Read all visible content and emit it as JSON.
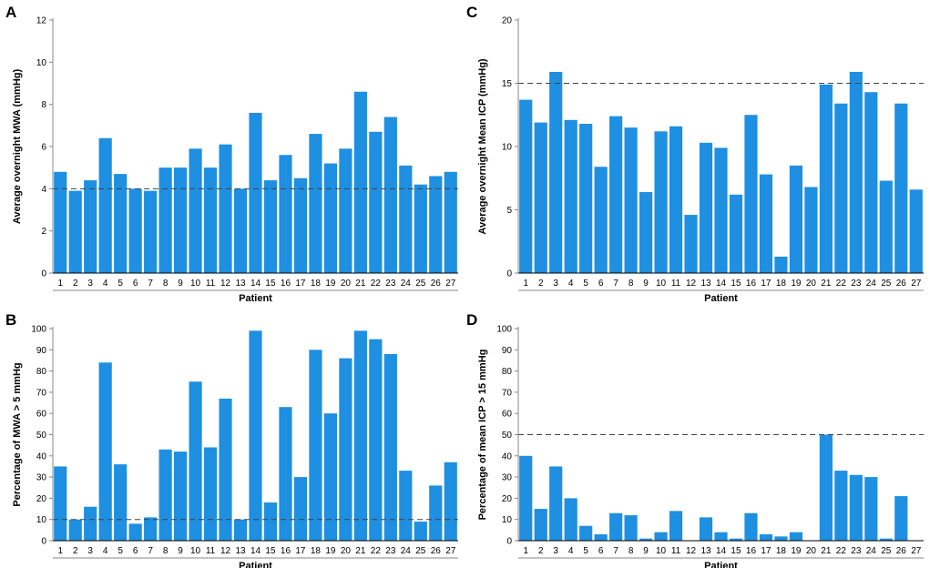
{
  "colors": {
    "bar": "#1E8FE1",
    "axis": "#888888",
    "baseline": "#000000",
    "reference_line": "#444444"
  },
  "chart_data": [
    {
      "panel": "A",
      "type": "bar",
      "title": "",
      "xlabel": "Patient",
      "ylabel": "Average overnight MWA (mmHg)",
      "categories": [
        "1",
        "2",
        "3",
        "4",
        "5",
        "6",
        "7",
        "8",
        "9",
        "10",
        "11",
        "12",
        "13",
        "14",
        "15",
        "16",
        "17",
        "18",
        "19",
        "20",
        "21",
        "22",
        "23",
        "24",
        "25",
        "26",
        "27"
      ],
      "values": [
        4.8,
        3.9,
        4.4,
        6.4,
        4.7,
        4.0,
        3.9,
        5.0,
        5.0,
        5.9,
        5.0,
        6.1,
        4.0,
        7.6,
        4.4,
        5.6,
        4.5,
        6.6,
        5.2,
        5.9,
        8.6,
        6.7,
        7.4,
        5.1,
        4.2,
        4.6,
        4.8
      ],
      "ylim": [
        0,
        12
      ],
      "yticks": [
        0,
        2,
        4,
        6,
        8,
        10,
        12
      ],
      "reference_line": 4,
      "grid": false
    },
    {
      "panel": "B",
      "type": "bar",
      "title": "",
      "xlabel": "Patient",
      "ylabel": "Percentage of MWA > 5 mmHg",
      "categories": [
        "1",
        "2",
        "3",
        "4",
        "5",
        "6",
        "7",
        "8",
        "9",
        "10",
        "11",
        "12",
        "13",
        "14",
        "15",
        "16",
        "17",
        "18",
        "19",
        "20",
        "21",
        "22",
        "23",
        "24",
        "25",
        "26",
        "27"
      ],
      "values": [
        35,
        10,
        16,
        84,
        36,
        8,
        11,
        43,
        42,
        75,
        44,
        67,
        10,
        99,
        18,
        63,
        30,
        90,
        60,
        86,
        99,
        95,
        88,
        33,
        9,
        26,
        37
      ],
      "ylim": [
        0,
        100
      ],
      "yticks": [
        0,
        10,
        20,
        30,
        40,
        50,
        60,
        70,
        80,
        90,
        100
      ],
      "reference_line": 10,
      "grid": false
    },
    {
      "panel": "C",
      "type": "bar",
      "title": "",
      "xlabel": "Patient",
      "ylabel": "Average overnight Mean ICP (mmHg)",
      "categories": [
        "1",
        "2",
        "3",
        "4",
        "5",
        "6",
        "7",
        "8",
        "9",
        "10",
        "11",
        "12",
        "13",
        "14",
        "15",
        "16",
        "17",
        "18",
        "19",
        "20",
        "21",
        "22",
        "23",
        "24",
        "25",
        "26",
        "27"
      ],
      "values": [
        13.7,
        11.9,
        15.9,
        12.1,
        11.8,
        8.4,
        12.4,
        11.5,
        6.4,
        11.2,
        11.6,
        4.6,
        10.3,
        9.9,
        6.2,
        12.5,
        7.8,
        1.3,
        8.5,
        6.8,
        14.9,
        13.4,
        15.9,
        14.3,
        7.3,
        13.4,
        6.6
      ],
      "ylim": [
        0,
        20
      ],
      "yticks": [
        0,
        5,
        10,
        15,
        20
      ],
      "reference_line": 15,
      "grid": false
    },
    {
      "panel": "D",
      "type": "bar",
      "title": "",
      "xlabel": "Patient",
      "ylabel": "Percentage of mean ICP > 15 mmHg",
      "categories": [
        "1",
        "2",
        "3",
        "4",
        "5",
        "6",
        "7",
        "8",
        "9",
        "10",
        "11",
        "12",
        "13",
        "14",
        "15",
        "16",
        "17",
        "18",
        "19",
        "20",
        "21",
        "22",
        "23",
        "24",
        "25",
        "26",
        "27"
      ],
      "values": [
        40,
        15,
        35,
        20,
        7,
        3,
        13,
        12,
        1,
        4,
        14,
        0,
        11,
        4,
        1,
        13,
        3,
        2,
        4,
        0,
        50,
        33,
        31,
        30,
        1,
        21,
        0
      ],
      "ylim": [
        0,
        100
      ],
      "yticks": [
        0,
        10,
        20,
        30,
        40,
        50,
        60,
        70,
        80,
        90,
        100
      ],
      "reference_line": 50,
      "grid": false
    }
  ]
}
